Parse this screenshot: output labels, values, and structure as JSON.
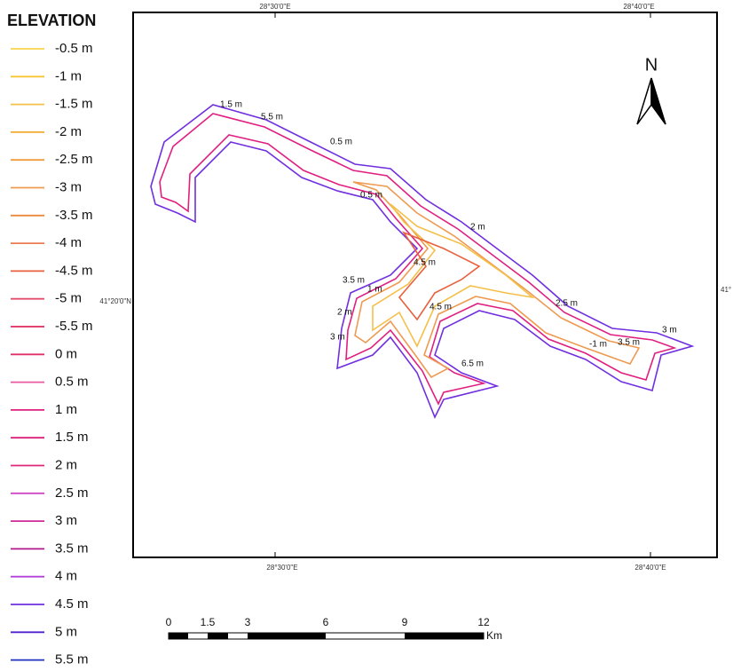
{
  "legend": {
    "title": "ELEVATION",
    "items": [
      {
        "label": "-0.5 m",
        "color": "#f7d44a"
      },
      {
        "label": "-1 m",
        "color": "#f6c533"
      },
      {
        "label": "-1.5 m",
        "color": "#f4c04a"
      },
      {
        "label": "-2 m",
        "color": "#f2ac30"
      },
      {
        "label": "-2.5 m",
        "color": "#f09c3c"
      },
      {
        "label": "-3 m",
        "color": "#ee9a50"
      },
      {
        "label": "-3.5 m",
        "color": "#ec8a3c"
      },
      {
        "label": "-4 m",
        "color": "#ea7a50"
      },
      {
        "label": "-4.5 m",
        "color": "#e8603c"
      },
      {
        "label": "-5 m",
        "color": "#e44c6c"
      },
      {
        "label": "-5.5 m",
        "color": "#e0285c"
      },
      {
        "label": "0 m",
        "color": "#e0306a"
      },
      {
        "label": "0.5 m",
        "color": "#e85aa0"
      },
      {
        "label": "1 m",
        "color": "#e02080"
      },
      {
        "label": "1.5 m",
        "color": "#d8207a"
      },
      {
        "label": "2 m",
        "color": "#e0287a"
      },
      {
        "label": "2.5 m",
        "color": "#d048c8"
      },
      {
        "label": "3 m",
        "color": "#d02898"
      },
      {
        "label": "3.5 m",
        "color": "#b01890"
      },
      {
        "label": "4 m",
        "color": "#b040d8"
      },
      {
        "label": "4.5 m",
        "color": "#7030e0"
      },
      {
        "label": "5 m",
        "color": "#5020d0"
      },
      {
        "label": "5.5 m",
        "color": "#2030c0"
      }
    ]
  },
  "map": {
    "north": "N",
    "coords": {
      "top": [
        "28°30'0\"E",
        "28°40'0\"E"
      ],
      "bottom": [
        "28°30'0\"E",
        "28°40'0\"E"
      ],
      "left": "41°20'0\"N",
      "right": "41°"
    },
    "contour_labels": [
      "1.5 m",
      "5.5 m",
      "0.5 m",
      "0.5 m",
      "2 m",
      "3.5 m",
      "1 m",
      "2 m",
      "3 m",
      "4.5 m",
      "4.5 m",
      "6.5 m",
      "2.5 m",
      "-1 m",
      "3 m",
      "3.5 m"
    ]
  },
  "scale_bar": {
    "ticks": [
      "0",
      "1.5",
      "3",
      "6",
      "9",
      "12"
    ],
    "unit": "Km"
  }
}
